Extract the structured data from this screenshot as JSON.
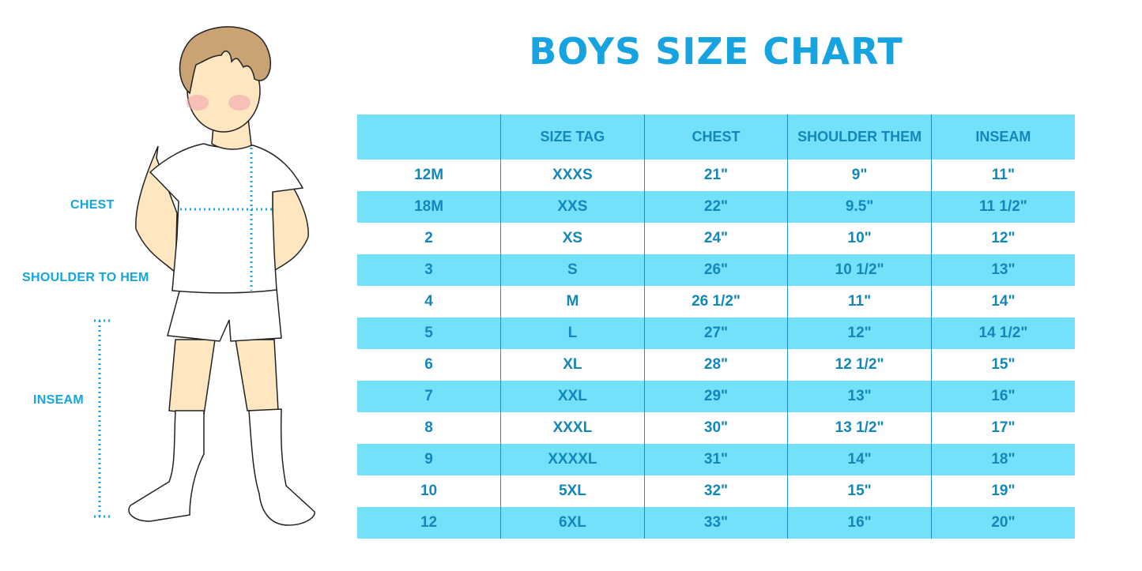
{
  "title": "BOYS SIZE CHART",
  "figure_labels": {
    "chest": "CHEST",
    "shoulder_to_hem": "SHOULDER TO HEM",
    "inseam": "INSEAM"
  },
  "colors": {
    "accent": "#17a3df",
    "header_bg": "#74e1fb",
    "text": "#1387b9"
  },
  "table": {
    "headers": [
      "",
      "SIZE TAG",
      "CHEST",
      "SHOULDER THEM",
      "INSEAM"
    ],
    "rows": [
      [
        "12M",
        "XXXS",
        "21\"",
        "9\"",
        "11\""
      ],
      [
        "18M",
        "XXS",
        "22\"",
        "9.5\"",
        "11 1/2\""
      ],
      [
        "2",
        "XS",
        "24\"",
        "10\"",
        "12\""
      ],
      [
        "3",
        "S",
        "26\"",
        "10 1/2\"",
        "13\""
      ],
      [
        "4",
        "M",
        "26 1/2\"",
        "11\"",
        "14\""
      ],
      [
        "5",
        "L",
        "27\"",
        "12\"",
        "14 1/2\""
      ],
      [
        "6",
        "XL",
        "28\"",
        "12 1/2\"",
        "15\""
      ],
      [
        "7",
        "XXL",
        "29\"",
        "13\"",
        "16\""
      ],
      [
        "8",
        "XXXL",
        "30\"",
        "13 1/2\"",
        "17\""
      ],
      [
        "9",
        "XXXXL",
        "31\"",
        "14\"",
        "18\""
      ],
      [
        "10",
        "5XL",
        "32\"",
        "15\"",
        "19\""
      ],
      [
        "12",
        "6XL",
        "33\"",
        "16\"",
        "20\""
      ]
    ]
  }
}
